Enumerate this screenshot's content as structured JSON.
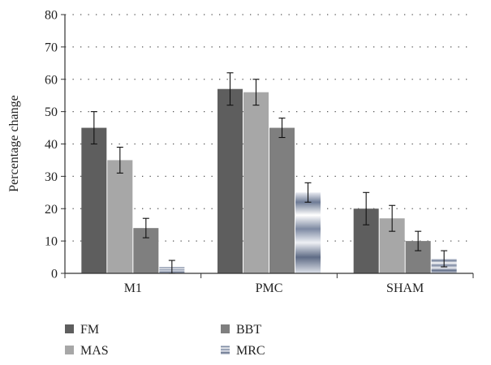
{
  "chart_data": {
    "type": "bar",
    "title": "",
    "xlabel": "",
    "ylabel": "Percentage change",
    "ylim": [
      0,
      80
    ],
    "yticks": [
      0,
      10,
      20,
      30,
      40,
      50,
      60,
      70,
      80
    ],
    "grid": true,
    "legend_position": "bottom",
    "categories": [
      "M1",
      "PMC",
      "SHAM"
    ],
    "series": [
      {
        "name": "FM",
        "values": [
          45,
          57,
          20
        ],
        "errors": [
          5,
          5,
          5
        ],
        "color": "#5e5e5e",
        "style": "solid"
      },
      {
        "name": "MAS",
        "values": [
          35,
          56,
          17
        ],
        "errors": [
          4,
          4,
          4
        ],
        "color": "#a7a7a7",
        "style": "solid"
      },
      {
        "name": "BBT",
        "values": [
          14,
          45,
          10
        ],
        "errors": [
          3,
          3,
          3
        ],
        "color": "#7f7f7f",
        "style": "solid"
      },
      {
        "name": "MRC",
        "values": [
          2,
          25,
          4.5
        ],
        "errors": [
          2,
          3,
          2.5
        ],
        "color": "#8a96ad",
        "style": "gradient"
      }
    ]
  }
}
